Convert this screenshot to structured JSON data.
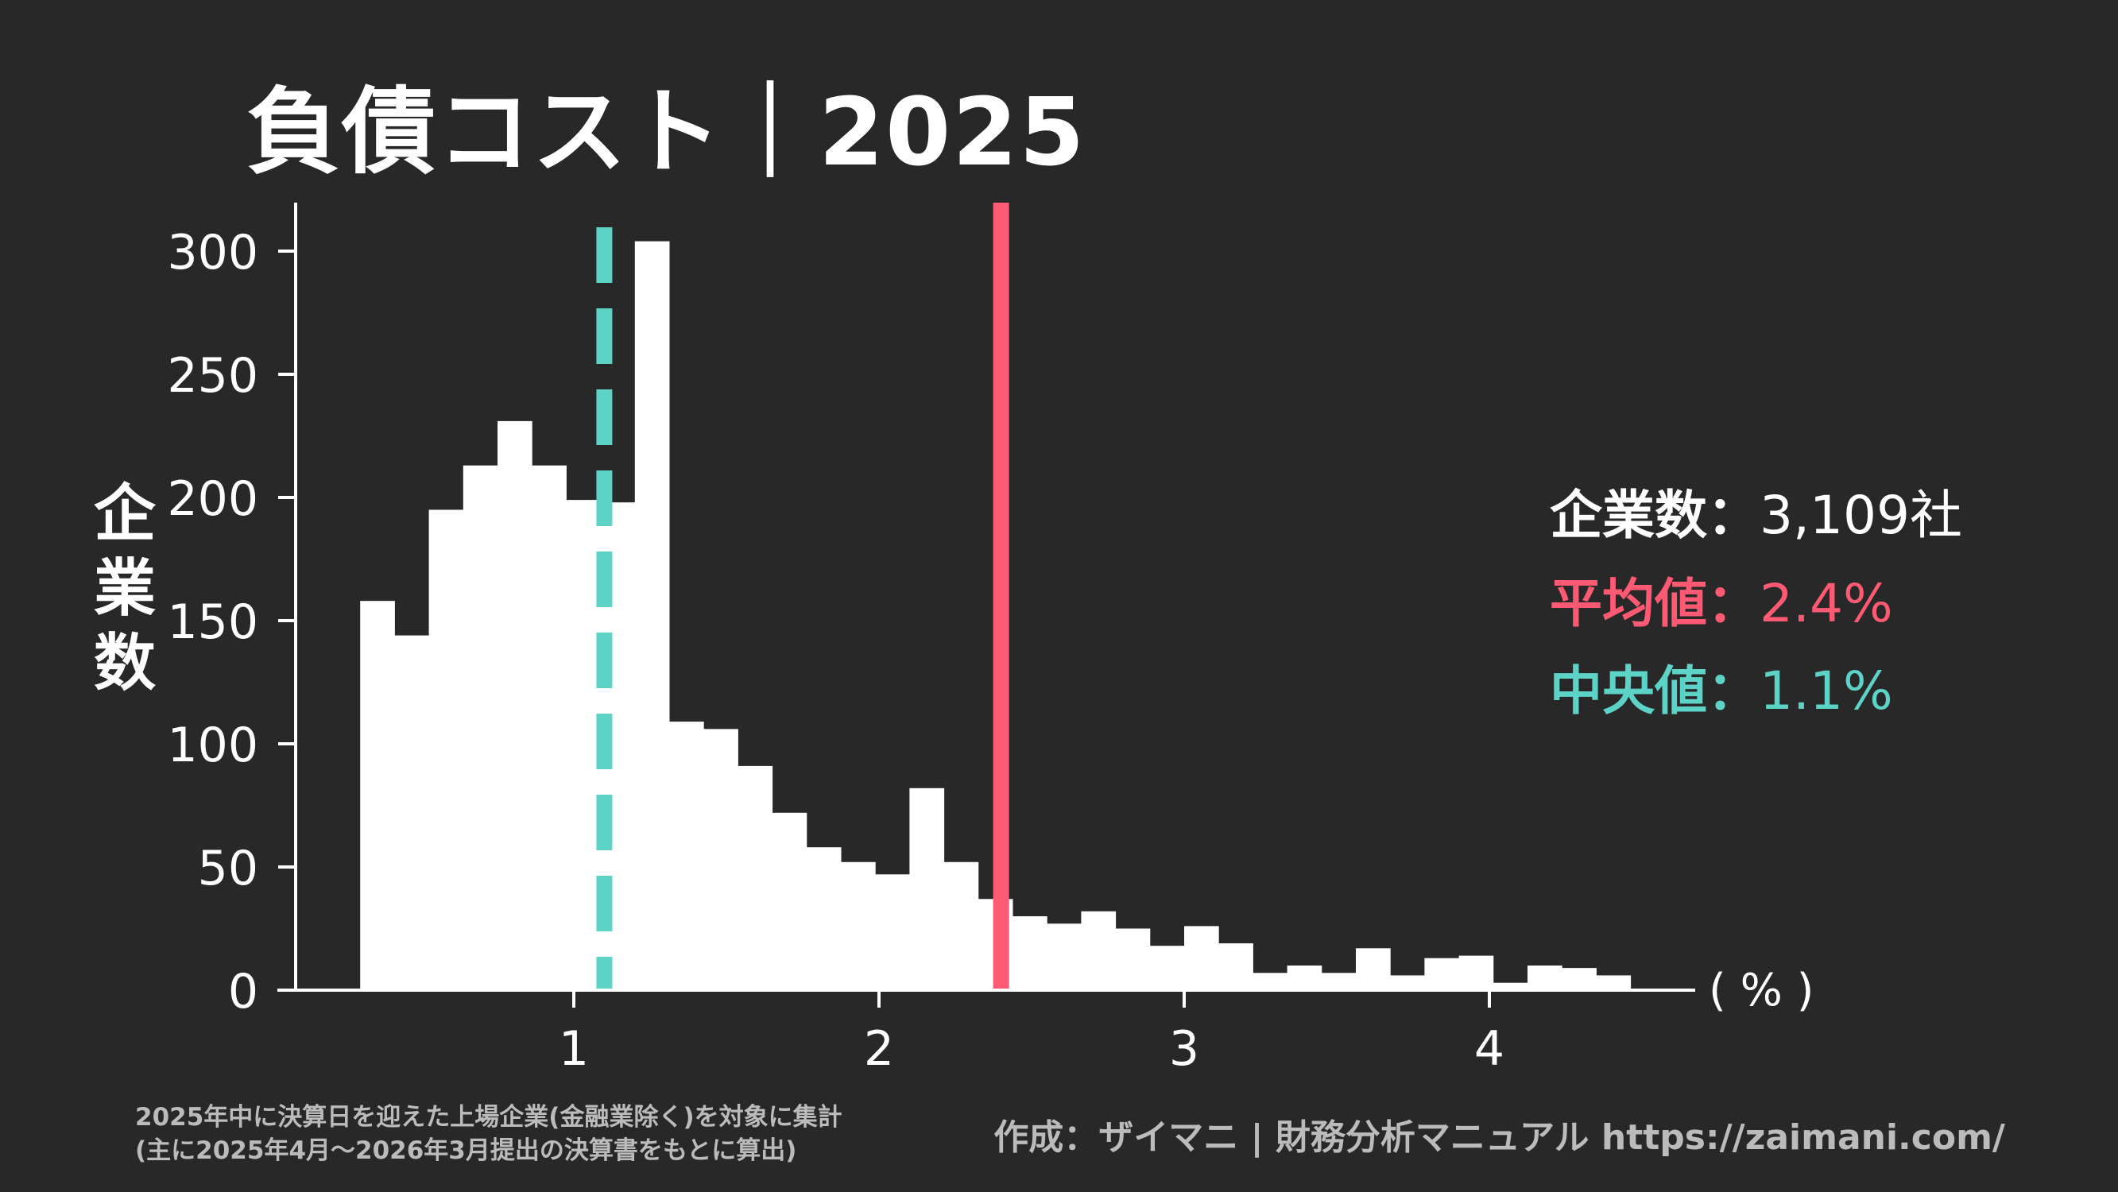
{
  "title": "負債コスト｜2025",
  "chart_data": {
    "type": "bar",
    "title": "負債コスト｜2025",
    "xlabel": "( % )",
    "ylabel": "企業数",
    "bin_start": 0.3,
    "bin_width": 0.1125,
    "values": [
      158,
      144,
      195,
      213,
      231,
      213,
      199,
      198,
      304,
      109,
      106,
      91,
      72,
      58,
      52,
      47,
      82,
      52,
      37,
      30,
      27,
      32,
      25,
      18,
      26,
      19,
      7,
      10,
      7,
      17,
      6,
      13,
      14,
      3,
      10,
      9,
      6
    ],
    "xlim": [
      -0.9,
      4.7
    ],
    "ylim": [
      0,
      320
    ],
    "xticks": [
      1,
      2,
      3,
      4
    ],
    "yticks": [
      0,
      50,
      100,
      150,
      200,
      250,
      300
    ],
    "grid": false,
    "bar_color": "#ffffff",
    "mean": 2.4,
    "median": 1.1,
    "mean_color": "#ff5a73",
    "median_color": "#5dd3c8"
  },
  "stats": {
    "count_label": "企業数：",
    "count_value": "3,109社",
    "mean_label": "平均値：",
    "mean_value": "2.4%",
    "median_label": "中央値：",
    "median_value": "1.1%"
  },
  "footer": {
    "note_line1": "2025年中に決算日を迎えた上場企業(金融業除く)を対象に集計",
    "note_line2": "(主に2025年4月〜2026年3月提出の決算書をもとに算出)",
    "credit": "作成：ザイマニ | 財務分析マニュアル https://zaimani.com/"
  }
}
